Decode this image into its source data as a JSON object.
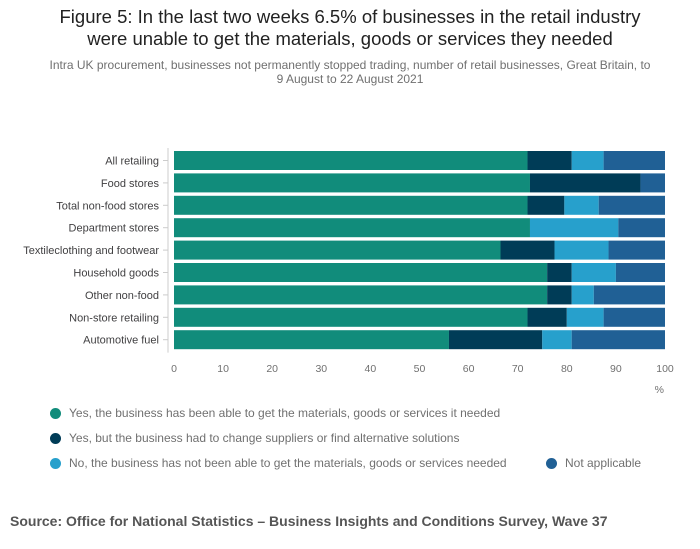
{
  "title_line1": "Figure 5: In the last two weeks 6.5% of businesses in the retail industry",
  "title_line2": "were unable to get the materials, goods or services they needed",
  "subtitle_line1": "Intra UK procurement, businesses not permanently stopped trading, number of retail businesses, Great Britain, to",
  "subtitle_line2": "9 August to 22 August 2021",
  "source": "Source: Office for National Statistics – Business Insights and Conditions Survey, Wave 37",
  "colors": {
    "yes": "#118c7b",
    "changed": "#003c57",
    "no": "#27a0cc",
    "na": "#206095"
  },
  "chart_data": {
    "type": "bar",
    "orientation": "horizontal",
    "stacked": true,
    "categories": [
      "All retailing",
      "Food stores",
      "Total non-food stores",
      "Department stores",
      "Textileclothing and footwear",
      "Household goods",
      "Other non-food",
      "Non-store retailing",
      "Automotive fuel"
    ],
    "series": [
      {
        "key": "yes",
        "name": "Yes, the business has been able to get the materials, goods or services it needed",
        "values": [
          72,
          72.5,
          72,
          72.5,
          66.5,
          76,
          76,
          72,
          56
        ]
      },
      {
        "key": "changed",
        "name": "Yes, but the business had to change suppliers or find alternative solutions",
        "values": [
          9,
          22.5,
          7.5,
          0,
          11,
          5,
          5,
          8,
          19
        ]
      },
      {
        "key": "no",
        "name": "No, the business has not been able to get the materials, goods or services needed",
        "values": [
          6.5,
          0,
          7,
          18,
          11,
          9,
          4.5,
          7.5,
          6
        ]
      },
      {
        "key": "na",
        "name": "Not applicable",
        "values": [
          12.5,
          5,
          13.5,
          9.5,
          11.5,
          10,
          14.5,
          12.5,
          19
        ]
      }
    ],
    "x_ticks": [
      "0",
      "10",
      "20",
      "30",
      "40",
      "50",
      "60",
      "70",
      "80",
      "90",
      "100"
    ],
    "xlabel": "%",
    "xlim": [
      0,
      100
    ],
    "grid": false,
    "legend_position": "bottom"
  }
}
